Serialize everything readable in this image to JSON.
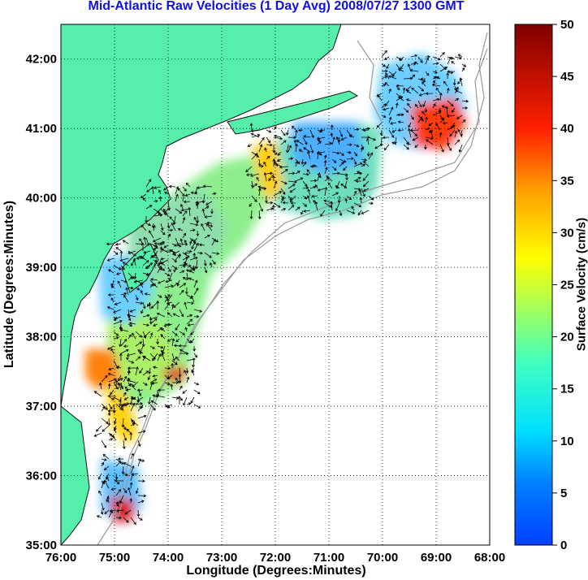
{
  "title": "Mid-Atlantic Raw Velocities (1 Day Avg) 2008/07/27 1300 GMT",
  "title_color": "#1010e0",
  "map": {
    "xlabel": "Longitude (Degrees:Minutes)",
    "ylabel": "Latitude (Degrees:Minutes)",
    "lon_range": [
      -76,
      -68
    ],
    "lat_range": [
      35,
      42.5
    ],
    "x_ticks": [
      "76:00",
      "75:00",
      "74:00",
      "73:00",
      "72:00",
      "71:00",
      "70:00",
      "69:00",
      "68:00"
    ],
    "y_ticks": [
      "35:00",
      "36:00",
      "37:00",
      "38:00",
      "39:00",
      "40:00",
      "41:00",
      "42:00"
    ],
    "grid": "dotted",
    "land_color": "#55eeaa",
    "ocean_color": "#ffffff",
    "bathymetry_color": "#999999",
    "arrow_color": "#000000"
  },
  "colorbar": {
    "label": "Surface Velocity (cm/s)",
    "range": [
      0,
      50
    ],
    "ticks": [
      "0",
      "5",
      "10",
      "15",
      "20",
      "25",
      "30",
      "35",
      "40",
      "45",
      "50"
    ],
    "colormap": "jet"
  }
}
